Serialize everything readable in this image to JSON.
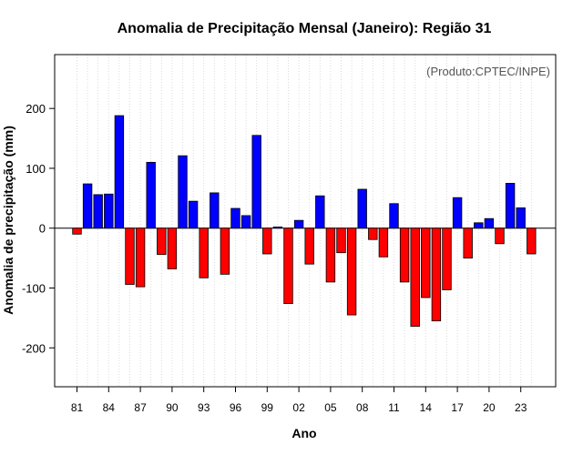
{
  "chart_data": {
    "type": "bar",
    "title": "Anomalia de Precipitação Mensal (Janeiro): Região 31",
    "xlabel": "Ano",
    "ylabel": "Anomalia de precipitação (mm)",
    "credit": "(Produto:CPTEC/INPE)",
    "ylim": [
      -265,
      290
    ],
    "yticks": [
      -200,
      -100,
      0,
      100,
      200
    ],
    "grid": "vertical dotted",
    "positive_color": "#0000ff",
    "negative_color": "#ff0000",
    "categories": [
      "1981",
      "1982",
      "1983",
      "1984",
      "1985",
      "1986",
      "1987",
      "1988",
      "1989",
      "1990",
      "1991",
      "1992",
      "1993",
      "1994",
      "1995",
      "1996",
      "1997",
      "1998",
      "1999",
      "2000",
      "2001",
      "2002",
      "2003",
      "2004",
      "2005",
      "2006",
      "2007",
      "2008",
      "2009",
      "2010",
      "2011",
      "2012",
      "2013",
      "2014",
      "2015",
      "2016",
      "2017",
      "2018",
      "2019",
      "2020",
      "2021",
      "2022",
      "2023",
      "2024"
    ],
    "values": [
      -10,
      74,
      56,
      57,
      188,
      -94,
      -98,
      110,
      -44,
      -68,
      121,
      45,
      -83,
      59,
      -77,
      33,
      21,
      155,
      -43,
      2,
      -126,
      13,
      -60,
      54,
      -90,
      -41,
      -145,
      65,
      -19,
      -48,
      41,
      -90,
      -164,
      -116,
      -155,
      -103,
      51,
      -50,
      9,
      16,
      -26,
      75,
      34,
      -43
    ],
    "xtick_labels": [
      "81",
      "84",
      "87",
      "90",
      "93",
      "96",
      "99",
      "02",
      "05",
      "08",
      "11",
      "14",
      "17",
      "20",
      "23"
    ],
    "xtick_categories": [
      "1981",
      "1984",
      "1987",
      "1990",
      "1993",
      "1996",
      "1999",
      "2002",
      "2005",
      "2008",
      "2011",
      "2014",
      "2017",
      "2020",
      "2023"
    ]
  }
}
